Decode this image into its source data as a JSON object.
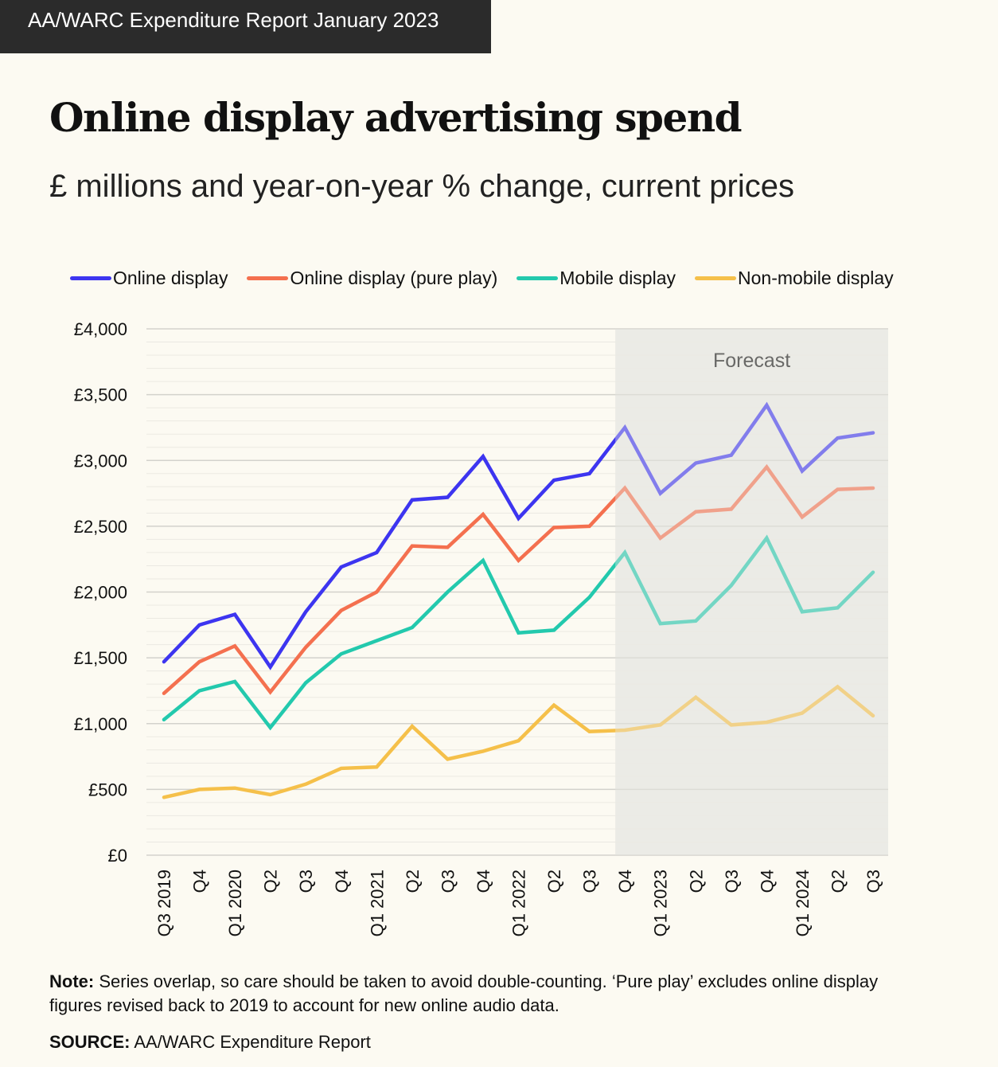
{
  "header": {
    "report": "AA/WARC Expenditure Report January 2023"
  },
  "note": {
    "label": "Note:",
    "text": " Series overlap, so care should be taken to avoid double-counting. ‘Pure play’ excludes online display",
    "text2": "figures revised back to 2019 to account for new online audio data."
  },
  "source": {
    "label": "SOURCE:",
    "text": " AA/WARC Expenditure Report"
  },
  "chart_data": {
    "type": "line",
    "title": "Online display advertising spend",
    "subtitle": "£ millions and year-on-year % change, current prices",
    "categories": [
      "Q3 2019",
      "Q4",
      "Q1 2020",
      "Q2",
      "Q3",
      "Q4",
      "Q1 2021",
      "Q2",
      "Q3",
      "Q4",
      "Q1 2022",
      "Q2",
      "Q3",
      "Q4",
      "Q1 2023",
      "Q2",
      "Q3",
      "Q4",
      "Q1 2024",
      "Q2",
      "Q3"
    ],
    "ylim": [
      0,
      4000
    ],
    "yticks": [
      "£0",
      "£500",
      "£1,000",
      "£1,500",
      "£2,000",
      "£2,500",
      "£3,000",
      "£3,500",
      "£4,000"
    ],
    "grid": true,
    "legend": "top",
    "forecast": {
      "label": "Forecast",
      "from": "Q4 2022"
    },
    "series": [
      {
        "name": "Online display",
        "color": "#3d35f0",
        "values": [
          1470,
          1750,
          1830,
          1430,
          1850,
          2190,
          2300,
          2700,
          2720,
          3030,
          2560,
          2850,
          2900,
          3250,
          2750,
          2980,
          3040,
          3420,
          2920,
          3170,
          3210
        ]
      },
      {
        "name": "Online display (pure play)",
        "color": "#f4704f",
        "values": [
          1230,
          1470,
          1590,
          1240,
          1580,
          1860,
          2000,
          2350,
          2340,
          2590,
          2240,
          2490,
          2500,
          2790,
          2410,
          2610,
          2630,
          2950,
          2570,
          2780,
          2790
        ]
      },
      {
        "name": "Mobile display",
        "color": "#23c9ad",
        "values": [
          1030,
          1250,
          1320,
          970,
          1310,
          1530,
          1630,
          1730,
          2000,
          2240,
          1690,
          1710,
          1960,
          2300,
          1760,
          1780,
          2050,
          2410,
          1850,
          1880,
          2150
        ]
      },
      {
        "name": "Non-mobile display",
        "color": "#f5c04a",
        "values": [
          440,
          500,
          510,
          460,
          540,
          660,
          670,
          980,
          730,
          790,
          870,
          1140,
          940,
          950,
          990,
          1200,
          990,
          1010,
          1080,
          1280,
          1060
        ]
      }
    ]
  }
}
